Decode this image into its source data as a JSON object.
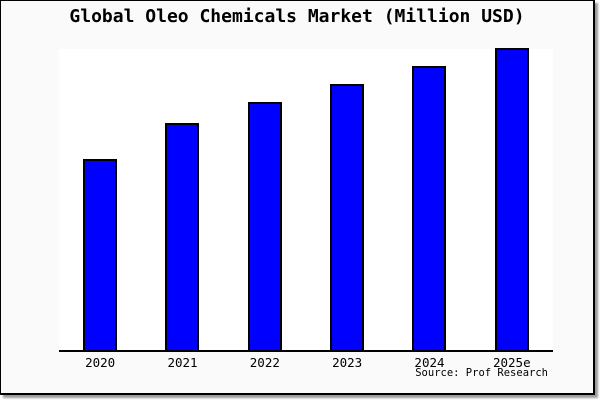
{
  "chart": {
    "title": "Global Oleo Chemicals Market (Million USD)",
    "source": "Source: Prof Research",
    "bar_color": "#0000fe",
    "bar_border_color": "#000000",
    "background_color": "#fafafa",
    "plot_background_color": "#ffffff"
  },
  "chart_data": {
    "type": "bar",
    "title": "Global Oleo Chemicals Market (Million USD)",
    "categories": [
      "2020",
      "2021",
      "2022",
      "2023",
      "2024",
      "2025e"
    ],
    "values": [
      63,
      75,
      82,
      88,
      94,
      100
    ],
    "value_scale": "relative bar height, percent of tallest (2025e) bar; no y-axis or value labels shown in chart",
    "xlabel": "",
    "ylabel": "",
    "ylim": [
      0,
      100
    ],
    "grid": false,
    "legend": "none",
    "annotations": [
      "Source: Prof Research"
    ]
  }
}
